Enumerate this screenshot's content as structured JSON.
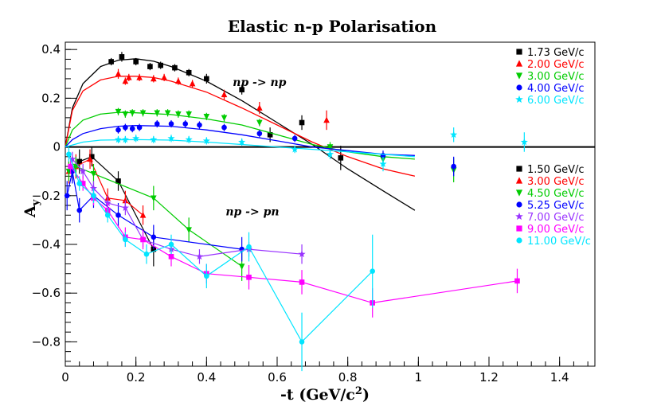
{
  "chart_data": {
    "type": "scatter",
    "title": "Elastic n-p Polarisation",
    "xlabel": "-t (GeV/c",
    "xlabel_sup": "2",
    "xlabel_end": ")",
    "ylabel": "A",
    "ylabel_sub": "y",
    "xlim": [
      0,
      1.5
    ],
    "ylim": [
      -0.9,
      0.43
    ],
    "xticks": [
      0,
      0.2,
      0.4,
      0.6,
      0.8,
      1.0,
      1.2,
      1.4
    ],
    "xtick_labels": [
      "0",
      "0.2",
      "0.4",
      "0.6",
      "0.8",
      "1",
      "1.2",
      "1.4"
    ],
    "yticks": [
      -0.8,
      -0.6,
      -0.4,
      -0.2,
      0,
      0.2,
      0.4
    ],
    "ytick_labels": [
      "−0.8",
      "−0.6",
      "−0.4",
      "−0.2",
      "0",
      "0.2",
      "0.4"
    ],
    "annotations": [
      {
        "text": "np -> np",
        "x": 0.55,
        "y": 0.25
      },
      {
        "text": "np -> pn",
        "x": 0.53,
        "y": -0.28
      }
    ],
    "legends": [
      {
        "name": "np -> np",
        "placement": "top-right",
        "entries": [
          {
            "label": "1.73 GeV/c",
            "color": "#000000",
            "marker": "square"
          },
          {
            "label": "2.00 GeV/c",
            "color": "#ff0000",
            "marker": "triangle-up"
          },
          {
            "label": "3.00 GeV/c",
            "color": "#00cc00",
            "marker": "triangle-down"
          },
          {
            "label": "4.00 GeV/c",
            "color": "#0000ff",
            "marker": "circle"
          },
          {
            "label": "6.00 GeV/c",
            "color": "#00e5ff",
            "marker": "star"
          }
        ]
      },
      {
        "name": "np -> pn",
        "placement": "right",
        "entries": [
          {
            "label": "1.50 GeV/c",
            "color": "#000000",
            "marker": "square"
          },
          {
            "label": "3.00 GeV/c",
            "color": "#ff0000",
            "marker": "triangle-up"
          },
          {
            "label": "4.50 GeV/c",
            "color": "#00cc00",
            "marker": "triangle-down"
          },
          {
            "label": "5.25 GeV/c",
            "color": "#0000ff",
            "marker": "circle"
          },
          {
            "label": "7.00 GeV/c",
            "color": "#9933ff",
            "marker": "star"
          },
          {
            "label": "9.00 GeV/c",
            "color": "#ff00ff",
            "marker": "square"
          },
          {
            "label": "11.00 GeV/c",
            "color": "#00e5ff",
            "marker": "circle"
          }
        ]
      }
    ],
    "series": [
      {
        "name": "np->np 1.73 GeV/c",
        "color": "#000000",
        "marker": "square",
        "points": [
          [
            0.13,
            0.35,
            0.015
          ],
          [
            0.16,
            0.37,
            0.02
          ],
          [
            0.2,
            0.35,
            0.015
          ],
          [
            0.24,
            0.33,
            0.015
          ],
          [
            0.27,
            0.335,
            0.015
          ],
          [
            0.31,
            0.325,
            0.015
          ],
          [
            0.35,
            0.305,
            0.015
          ],
          [
            0.4,
            0.28,
            0.02
          ],
          [
            0.5,
            0.235,
            0.02
          ],
          [
            0.58,
            0.05,
            0.03
          ],
          [
            0.67,
            0.1,
            0.03
          ],
          [
            0.78,
            -0.045,
            0.05
          ]
        ],
        "curve": [
          [
            0,
            0
          ],
          [
            0.02,
            0.16
          ],
          [
            0.05,
            0.26
          ],
          [
            0.1,
            0.33
          ],
          [
            0.15,
            0.356
          ],
          [
            0.2,
            0.362
          ],
          [
            0.25,
            0.352
          ],
          [
            0.3,
            0.33
          ],
          [
            0.4,
            0.27
          ],
          [
            0.5,
            0.19
          ],
          [
            0.6,
            0.1
          ],
          [
            0.7,
            0.01
          ],
          [
            0.8,
            -0.09
          ],
          [
            0.9,
            -0.18
          ],
          [
            0.99,
            -0.26
          ]
        ]
      },
      {
        "name": "np->np 2.00 GeV/c",
        "color": "#ff0000",
        "marker": "triangle-up",
        "points": [
          [
            0.15,
            0.3,
            0.02
          ],
          [
            0.17,
            0.27,
            0.015
          ],
          [
            0.18,
            0.285,
            0.015
          ],
          [
            0.21,
            0.285,
            0.015
          ],
          [
            0.25,
            0.28,
            0.015
          ],
          [
            0.28,
            0.285,
            0.015
          ],
          [
            0.32,
            0.27,
            0.015
          ],
          [
            0.36,
            0.26,
            0.015
          ],
          [
            0.45,
            0.215,
            0.02
          ],
          [
            0.55,
            0.16,
            0.025
          ],
          [
            0.74,
            0.11,
            0.04
          ]
        ],
        "curve": [
          [
            0,
            0
          ],
          [
            0.02,
            0.15
          ],
          [
            0.05,
            0.23
          ],
          [
            0.1,
            0.275
          ],
          [
            0.15,
            0.29
          ],
          [
            0.2,
            0.29
          ],
          [
            0.25,
            0.285
          ],
          [
            0.3,
            0.27
          ],
          [
            0.4,
            0.225
          ],
          [
            0.5,
            0.16
          ],
          [
            0.6,
            0.09
          ],
          [
            0.7,
            0.02
          ],
          [
            0.8,
            -0.04
          ],
          [
            0.9,
            -0.09
          ],
          [
            0.99,
            -0.12
          ]
        ]
      },
      {
        "name": "np->np 3.00 GeV/c",
        "color": "#00cc00",
        "marker": "triangle-down",
        "points": [
          [
            0.15,
            0.145,
            0.015
          ],
          [
            0.17,
            0.135,
            0.015
          ],
          [
            0.19,
            0.14,
            0.015
          ],
          [
            0.22,
            0.14,
            0.015
          ],
          [
            0.26,
            0.14,
            0.015
          ],
          [
            0.29,
            0.14,
            0.015
          ],
          [
            0.32,
            0.135,
            0.015
          ],
          [
            0.35,
            0.135,
            0.015
          ],
          [
            0.4,
            0.125,
            0.015
          ],
          [
            0.45,
            0.12,
            0.015
          ],
          [
            0.55,
            0.1,
            0.015
          ],
          [
            0.75,
            0,
            0.02
          ],
          [
            0.9,
            -0.05,
            0.03
          ],
          [
            1.1,
            -0.095,
            0.05
          ]
        ],
        "curve": [
          [
            0,
            0
          ],
          [
            0.02,
            0.07
          ],
          [
            0.05,
            0.11
          ],
          [
            0.1,
            0.135
          ],
          [
            0.15,
            0.142
          ],
          [
            0.2,
            0.14
          ],
          [
            0.3,
            0.133
          ],
          [
            0.4,
            0.115
          ],
          [
            0.5,
            0.09
          ],
          [
            0.6,
            0.05
          ],
          [
            0.7,
            0.01
          ],
          [
            0.8,
            -0.02
          ],
          [
            0.9,
            -0.04
          ],
          [
            0.99,
            -0.05
          ]
        ]
      },
      {
        "name": "np->np 4.00 GeV/c",
        "color": "#0000ff",
        "marker": "circle",
        "points": [
          [
            0.15,
            0.07,
            0.015
          ],
          [
            0.17,
            0.08,
            0.015
          ],
          [
            0.19,
            0.075,
            0.015
          ],
          [
            0.21,
            0.08,
            0.015
          ],
          [
            0.26,
            0.095,
            0.015
          ],
          [
            0.3,
            0.095,
            0.015
          ],
          [
            0.34,
            0.095,
            0.015
          ],
          [
            0.38,
            0.09,
            0.015
          ],
          [
            0.45,
            0.08,
            0.015
          ],
          [
            0.55,
            0.055,
            0.015
          ],
          [
            0.65,
            0.035,
            0.015
          ],
          [
            0.9,
            -0.035,
            0.02
          ],
          [
            1.1,
            -0.08,
            0.04
          ]
        ],
        "curve": [
          [
            0,
            0
          ],
          [
            0.02,
            0.03
          ],
          [
            0.05,
            0.055
          ],
          [
            0.1,
            0.075
          ],
          [
            0.15,
            0.085
          ],
          [
            0.2,
            0.088
          ],
          [
            0.3,
            0.085
          ],
          [
            0.4,
            0.07
          ],
          [
            0.5,
            0.05
          ],
          [
            0.6,
            0.025
          ],
          [
            0.7,
            0
          ],
          [
            0.8,
            -0.015
          ],
          [
            0.9,
            -0.03
          ],
          [
            0.99,
            -0.035
          ]
        ]
      },
      {
        "name": "np->np 6.00 GeV/c",
        "color": "#00e5ff",
        "marker": "star",
        "points": [
          [
            0.15,
            0.03,
            0.015
          ],
          [
            0.17,
            0.03,
            0.015
          ],
          [
            0.2,
            0.035,
            0.015
          ],
          [
            0.25,
            0.03,
            0.015
          ],
          [
            0.3,
            0.035,
            0.015
          ],
          [
            0.35,
            0.03,
            0.015
          ],
          [
            0.4,
            0.025,
            0.015
          ],
          [
            0.5,
            0.02,
            0.015
          ],
          [
            0.65,
            -0.01,
            0.015
          ],
          [
            0.75,
            -0.03,
            0.02
          ],
          [
            0.9,
            -0.07,
            0.03
          ],
          [
            1.1,
            0.05,
            0.03
          ],
          [
            1.3,
            0.02,
            0.04
          ]
        ],
        "curve": [
          [
            0,
            0
          ],
          [
            0.05,
            0.02
          ],
          [
            0.1,
            0.028
          ],
          [
            0.2,
            0.03
          ],
          [
            0.3,
            0.028
          ],
          [
            0.4,
            0.02
          ],
          [
            0.5,
            0.01
          ],
          [
            0.6,
            0
          ],
          [
            0.7,
            -0.01
          ],
          [
            0.8,
            -0.02
          ],
          [
            0.9,
            -0.03
          ],
          [
            0.99,
            -0.04
          ]
        ]
      },
      {
        "name": "np->pn 1.50 GeV/c",
        "color": "#000000",
        "marker": "square",
        "connect": true,
        "points": [
          [
            0.02,
            -0.09,
            0.05
          ],
          [
            0.04,
            -0.06,
            0.05
          ],
          [
            0.075,
            -0.04,
            0.04
          ],
          [
            0.15,
            -0.14,
            0.04
          ],
          [
            0.25,
            -0.42,
            0.07
          ]
        ]
      },
      {
        "name": "np->pn 3.00 GeV/c",
        "color": "#ff0000",
        "marker": "triangle-up",
        "connect": true,
        "points": [
          [
            0.01,
            -0.1,
            0.05
          ],
          [
            0.03,
            -0.08,
            0.05
          ],
          [
            0.07,
            -0.05,
            0.04
          ],
          [
            0.12,
            -0.21,
            0.04
          ],
          [
            0.17,
            -0.22,
            0.04
          ],
          [
            0.22,
            -0.28,
            0.04
          ]
        ]
      },
      {
        "name": "np->pn 4.50 GeV/c",
        "color": "#00cc00",
        "marker": "triangle-down",
        "connect": true,
        "points": [
          [
            0.01,
            -0.1,
            0.04
          ],
          [
            0.03,
            -0.08,
            0.04
          ],
          [
            0.08,
            -0.11,
            0.04
          ],
          [
            0.25,
            -0.21,
            0.05
          ],
          [
            0.35,
            -0.34,
            0.05
          ],
          [
            0.5,
            -0.49,
            0.06
          ]
        ]
      },
      {
        "name": "np->pn 5.25 GeV/c",
        "color": "#0000ff",
        "marker": "circle",
        "connect": true,
        "points": [
          [
            0.005,
            -0.2,
            0.06
          ],
          [
            0.02,
            -0.1,
            0.05
          ],
          [
            0.04,
            -0.26,
            0.05
          ],
          [
            0.08,
            -0.2,
            0.05
          ],
          [
            0.15,
            -0.28,
            0.05
          ],
          [
            0.25,
            -0.37,
            0.05
          ],
          [
            0.5,
            -0.42,
            0.05
          ]
        ]
      },
      {
        "name": "np->pn 7.00 GeV/c",
        "color": "#9933ff",
        "marker": "star",
        "connect": true,
        "points": [
          [
            0.02,
            -0.05,
            0.03
          ],
          [
            0.05,
            -0.1,
            0.03
          ],
          [
            0.08,
            -0.17,
            0.03
          ],
          [
            0.12,
            -0.23,
            0.03
          ],
          [
            0.17,
            -0.25,
            0.03
          ],
          [
            0.22,
            -0.38,
            0.03
          ],
          [
            0.3,
            -0.42,
            0.03
          ],
          [
            0.38,
            -0.45,
            0.03
          ],
          [
            0.52,
            -0.42,
            0.03
          ],
          [
            0.67,
            -0.44,
            0.04
          ]
        ]
      },
      {
        "name": "np->pn 9.00 GeV/c",
        "color": "#ff00ff",
        "marker": "square",
        "connect": true,
        "points": [
          [
            0.015,
            -0.08,
            0.03
          ],
          [
            0.05,
            -0.15,
            0.03
          ],
          [
            0.08,
            -0.21,
            0.03
          ],
          [
            0.12,
            -0.26,
            0.03
          ],
          [
            0.17,
            -0.37,
            0.04
          ],
          [
            0.22,
            -0.38,
            0.04
          ],
          [
            0.3,
            -0.45,
            0.04
          ],
          [
            0.4,
            -0.52,
            0.04
          ],
          [
            0.52,
            -0.535,
            0.05
          ],
          [
            0.67,
            -0.555,
            0.05
          ],
          [
            0.87,
            -0.64,
            0.06
          ],
          [
            1.28,
            -0.55,
            0.05
          ]
        ]
      },
      {
        "name": "np->pn 11.00 GeV/c",
        "color": "#00e5ff",
        "marker": "circle",
        "connect": true,
        "points": [
          [
            0.01,
            -0.03,
            0.03
          ],
          [
            0.04,
            -0.15,
            0.03
          ],
          [
            0.08,
            -0.2,
            0.03
          ],
          [
            0.12,
            -0.28,
            0.03
          ],
          [
            0.17,
            -0.38,
            0.03
          ],
          [
            0.23,
            -0.44,
            0.04
          ],
          [
            0.3,
            -0.4,
            0.04
          ],
          [
            0.4,
            -0.53,
            0.05
          ],
          [
            0.52,
            -0.41,
            0.06
          ],
          [
            0.67,
            -0.8,
            0.12
          ],
          [
            0.87,
            -0.51,
            0.15
          ]
        ]
      }
    ]
  }
}
